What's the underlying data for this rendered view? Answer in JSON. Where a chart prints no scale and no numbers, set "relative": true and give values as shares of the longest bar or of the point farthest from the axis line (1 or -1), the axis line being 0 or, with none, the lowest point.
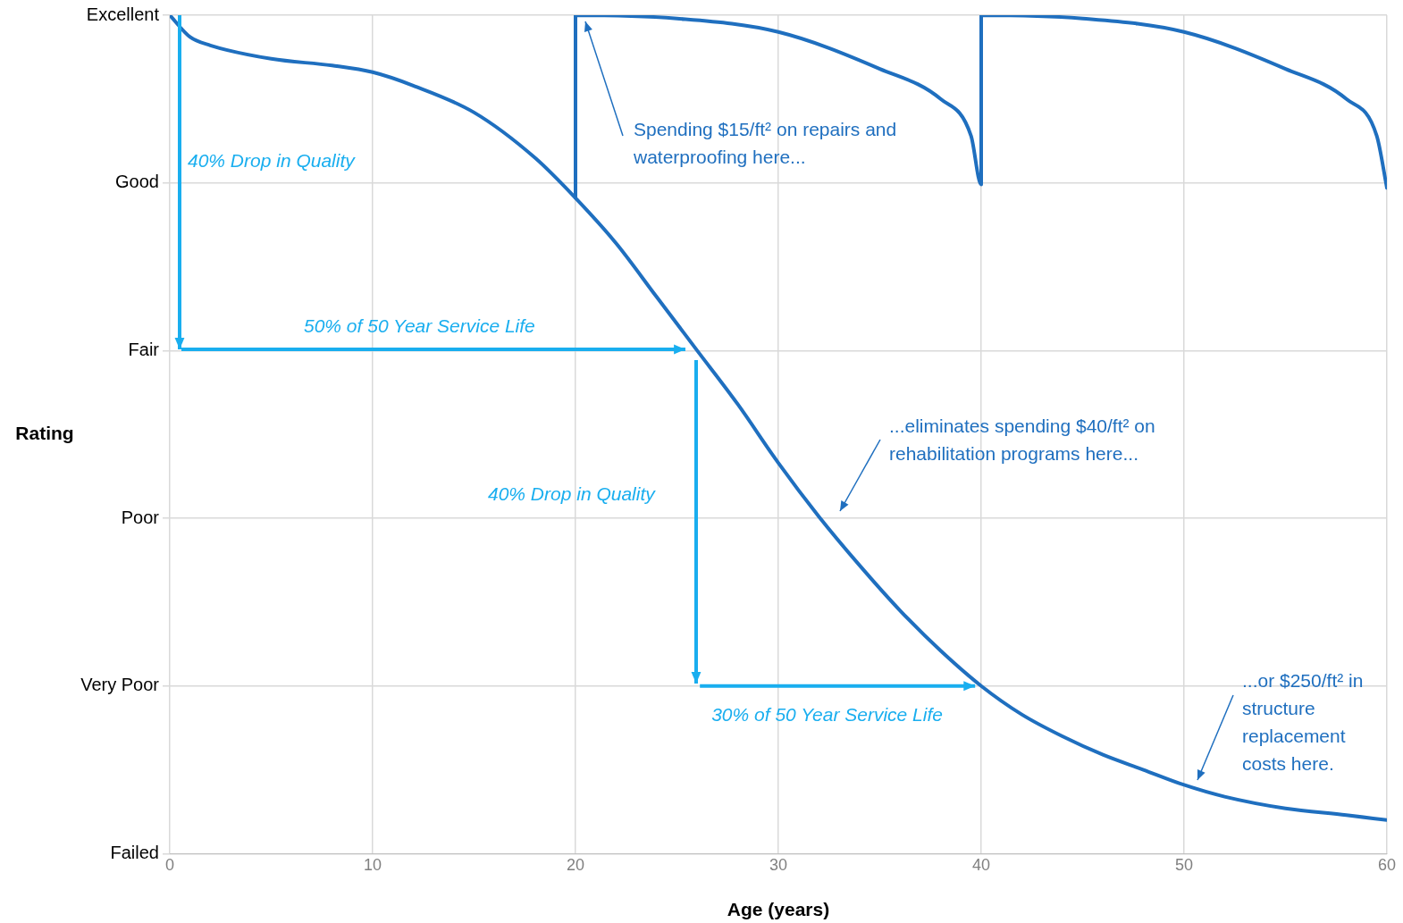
{
  "chart_data": {
    "type": "line",
    "relative": true,
    "xlabel": "Age (years)",
    "ylabel": "Rating",
    "xlim": [
      0,
      60
    ],
    "xticks": [
      0,
      10,
      20,
      30,
      40,
      50,
      60
    ],
    "grid": true,
    "legend": false,
    "marker": "none",
    "line_style": "solid",
    "series": [
      {
        "color": "#1f6fbf",
        "x": [
          0,
          1,
          2,
          5,
          8,
          10,
          12,
          15,
          18,
          20,
          22,
          24,
          26,
          28,
          30,
          32,
          34,
          36,
          38,
          40,
          42,
          44,
          46,
          48,
          50,
          52,
          55,
          58,
          60
        ],
        "values": [
          1,
          0.974,
          0.964,
          0.948,
          0.94,
          0.932,
          0.916,
          0.884,
          0.83,
          0.782,
          0.728,
          0.664,
          0.6,
          0.536,
          0.466,
          0.402,
          0.344,
          0.29,
          0.242,
          0.2,
          0.166,
          0.14,
          0.118,
          0.1,
          0.082,
          0.068,
          0.054,
          0.046,
          0.04
        ]
      },
      {
        "color": "#1f6fbf",
        "x": [
          20,
          20,
          25,
          30,
          35,
          38,
          39.5,
          40,
          40,
          45,
          50,
          55,
          58,
          59.5,
          60
        ],
        "values": [
          0.782,
          1,
          0.996,
          0.98,
          0.936,
          0.9,
          0.856,
          0.798,
          1,
          0.996,
          0.98,
          0.936,
          0.9,
          0.856,
          0.794
        ]
      }
    ],
    "annotations": [
      "Excellent",
      "Good",
      "Fair",
      "Poor",
      "Very Poor",
      "Failed",
      "Spending $15/ft² on repairs and waterproofing here...",
      "...eliminates spending $40/ft² on rehabilitation programs here...",
      "...or $250/ft² in structure replacement costs here.",
      "40% Drop in Quality",
      "50% of 50 Year Service Life",
      "40% Drop in Quality",
      {
        "text": "30% of 50 Year Service Life",
        "x": 39.7,
        "y": 0.2
      }
    ]
  }
}
